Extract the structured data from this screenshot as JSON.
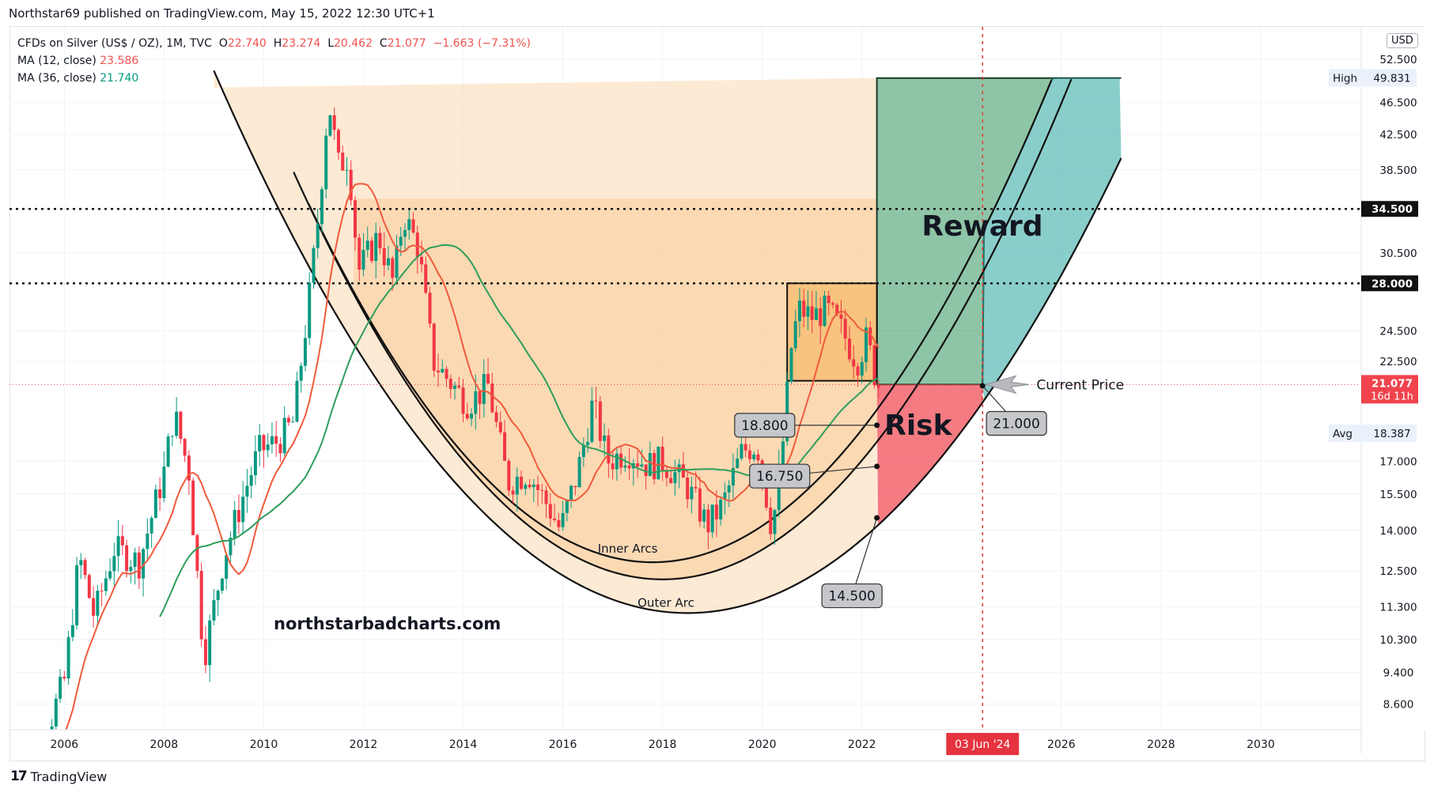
{
  "header": {
    "published": "Northstar69 published on TradingView.com, May 15, 2022 12:30 UTC+1"
  },
  "legend": {
    "symbol": "CFDs on Silver (US$ / OZ), 1M, TVC",
    "o_label": "O",
    "o": "22.740",
    "h_label": "H",
    "h": "23.274",
    "l_label": "L",
    "l": "20.462",
    "c_label": "C",
    "c": "21.077",
    "change": "−1.663 (−7.31%)",
    "ma12_label": "MA (12, close)",
    "ma12_value": "23.586",
    "ma36_label": "MA (36, close)",
    "ma36_value": "21.740"
  },
  "currency_button": "USD",
  "footer": {
    "brand": "TradingView",
    "brand_glyph": "17"
  },
  "colors": {
    "up": "#089981",
    "down": "#f23645",
    "ma12": "#f05a3c",
    "ma36": "#2e9e5b",
    "bowl": "#fcd9b0",
    "reward": "#1e8c4e",
    "risk": "#f0434d",
    "box": "#f7b45a",
    "current_price_bg": "#f0434d"
  },
  "chart_data": {
    "type": "candlestick",
    "title": "CFDs on Silver (US$ / OZ), 1M, TVC",
    "y_scale": "log",
    "ylim": [
      8.0,
      57.5
    ],
    "xlim": [
      2004.9,
      2032.0
    ],
    "x_ticks": [
      "2006",
      "2008",
      "2010",
      "2012",
      "2014",
      "2016",
      "2018",
      "2020",
      "2022",
      "2026",
      "2028",
      "2030"
    ],
    "x_tick_values": [
      2006,
      2008,
      2010,
      2012,
      2014,
      2016,
      2018,
      2020,
      2022,
      2026,
      2028,
      2030
    ],
    "y_ticks": [
      "52.500",
      "46.500",
      "42.500",
      "38.500",
      "30.500",
      "24.500",
      "22.500",
      "17.000",
      "15.500",
      "14.000",
      "12.500",
      "11.300",
      "10.300",
      "9.400",
      "8.600"
    ],
    "y_tick_values": [
      52.5,
      46.5,
      42.5,
      38.5,
      30.5,
      24.5,
      22.5,
      17.0,
      15.5,
      14.0,
      12.5,
      11.3,
      10.3,
      9.4,
      8.6
    ],
    "price_anchors": [
      [
        2005.0,
        7.4
      ],
      [
        2005.5,
        7.5
      ],
      [
        2006.0,
        9.2
      ],
      [
        2006.3,
        13.0
      ],
      [
        2006.6,
        11.0
      ],
      [
        2007.0,
        13.3
      ],
      [
        2007.5,
        12.8
      ],
      [
        2008.0,
        16.5
      ],
      [
        2008.2,
        19.5
      ],
      [
        2008.5,
        16.5
      ],
      [
        2008.8,
        9.8
      ],
      [
        2009.2,
        13.0
      ],
      [
        2009.6,
        15.5
      ],
      [
        2009.9,
        17.5
      ],
      [
        2010.3,
        18.0
      ],
      [
        2010.6,
        19.0
      ],
      [
        2010.9,
        26.5
      ],
      [
        2011.1,
        34.0
      ],
      [
        2011.3,
        47.0
      ],
      [
        2011.5,
        39.0
      ],
      [
        2011.7,
        40.0
      ],
      [
        2011.9,
        29.0
      ],
      [
        2012.3,
        32.0
      ],
      [
        2012.6,
        28.0
      ],
      [
        2012.8,
        34.0
      ],
      [
        2013.1,
        31.0
      ],
      [
        2013.4,
        22.5
      ],
      [
        2013.8,
        21.0
      ],
      [
        2014.1,
        20.0
      ],
      [
        2014.5,
        21.0
      ],
      [
        2014.9,
        16.0
      ],
      [
        2015.3,
        16.5
      ],
      [
        2015.7,
        15.0
      ],
      [
        2015.95,
        14.0
      ],
      [
        2016.3,
        16.5
      ],
      [
        2016.6,
        20.0
      ],
      [
        2016.9,
        17.0
      ],
      [
        2017.3,
        17.5
      ],
      [
        2017.7,
        16.8
      ],
      [
        2018.0,
        17.0
      ],
      [
        2018.5,
        15.8
      ],
      [
        2018.9,
        14.2
      ],
      [
        2019.2,
        15.0
      ],
      [
        2019.6,
        17.5
      ],
      [
        2019.9,
        17.8
      ],
      [
        2020.2,
        14.0
      ],
      [
        2020.4,
        17.5
      ],
      [
        2020.6,
        24.0
      ],
      [
        2020.75,
        26.0
      ],
      [
        2021.0,
        25.5
      ],
      [
        2021.3,
        26.0
      ],
      [
        2021.6,
        24.5
      ],
      [
        2021.9,
        22.5
      ],
      [
        2022.1,
        24.0
      ],
      [
        2022.3,
        21.077
      ]
    ],
    "series": [
      {
        "name": "MA (12, close)",
        "value": 23.586
      },
      {
        "name": "MA (36, close)",
        "value": 21.74
      }
    ],
    "price_labels": [
      {
        "label": "High",
        "value": "49.831",
        "y": 49.831
      },
      {
        "label": "",
        "value": "34.500",
        "y": 34.5
      },
      {
        "label": "",
        "value": "28.000",
        "y": 28.0
      },
      {
        "label": "",
        "value": "21.077",
        "sub": "16d 11h",
        "y": 21.077
      },
      {
        "label": "Avg",
        "value": "18.387",
        "y": 18.387
      }
    ],
    "cursor_date_label": "03 Jun '24",
    "cursor_x": 2024.42,
    "horizontal_levels": [
      34.5,
      28.0
    ],
    "current_price_line": 21.077,
    "annotations": {
      "reward": "Reward",
      "risk": "Risk",
      "current_price": "Current Price",
      "inner_arcs": "Inner Arcs",
      "outer_arc": "Outer Arc",
      "watermark": "northstarbadcharts.com"
    },
    "callouts": [
      {
        "text": "18.800",
        "price": 18.8
      },
      {
        "text": "16.750",
        "price": 16.75
      },
      {
        "text": "14.500",
        "price": 14.5
      },
      {
        "text": "21.000",
        "price": 21.0
      }
    ],
    "consolidation_box": {
      "x0": 2020.5,
      "x1": 2022.3,
      "y0": 21.3,
      "y1": 28.0
    },
    "reward_zone": {
      "x_left": 2022.3,
      "x_right": 2027.2,
      "y_low": 21.077,
      "y_high": 49.8
    },
    "risk_zone": {
      "x_left": 2022.3,
      "x_right": 2024.42,
      "y_low": 14.5,
      "y_high": 21.077
    }
  }
}
